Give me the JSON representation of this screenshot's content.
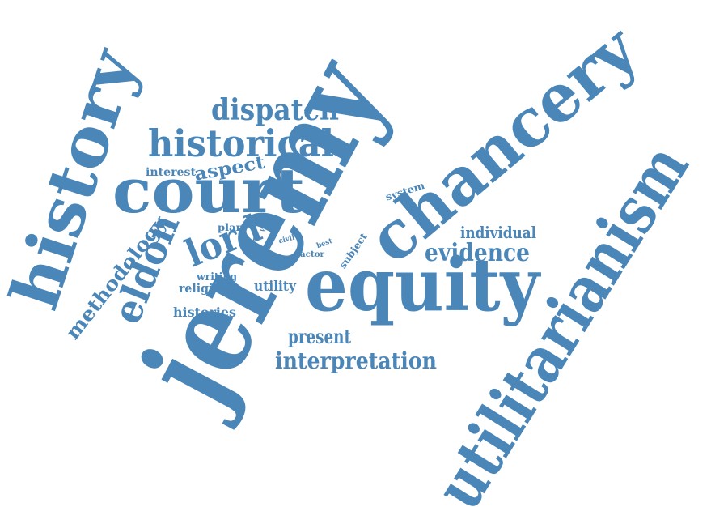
{
  "color": "#4a86b8",
  "words": {
    "jeremy": "jeremy",
    "utilitarianism": "utilitarianism",
    "chancery": "chancery",
    "history": "history",
    "equity": "equity",
    "court": "court",
    "historical": "historical",
    "dispatch": "dispatch",
    "eldon": "eldon",
    "lord": "lord",
    "evidence": "evidence",
    "interpretation": "interpretation",
    "methodology": "methodology",
    "aspect": "aspect",
    "individual": "individual",
    "present": "present",
    "histories": "histories",
    "religion": "religion",
    "utility": "utility",
    "writing": "writing",
    "interest": "interest",
    "plan": "plan",
    "view": "view",
    "civil": "civil",
    "best": "best",
    "actor": "actor",
    "subject": "subject",
    "system": "system"
  }
}
